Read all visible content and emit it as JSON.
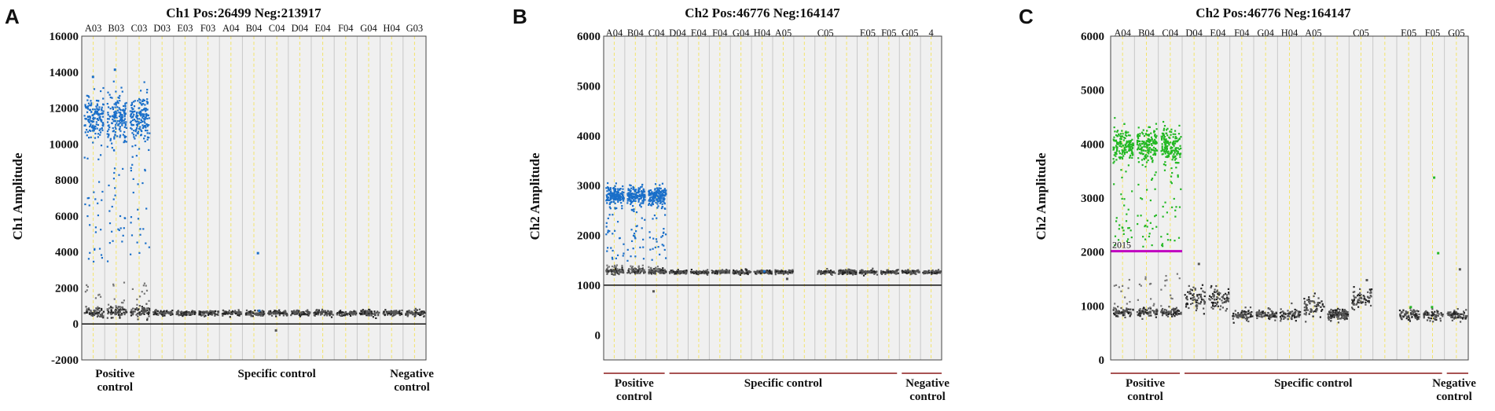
{
  "chart_data": [
    {
      "panel": "A",
      "type": "scatter",
      "title": "Ch1 Pos:26499 Neg:213917",
      "ylabel": "Ch1 Amplitude",
      "xlabel": "",
      "ylim": [
        -2000,
        16000
      ],
      "yticks": [
        -2000,
        0,
        2000,
        4000,
        6000,
        8000,
        10000,
        12000,
        14000,
        16000
      ],
      "wells": [
        "A03",
        "B03",
        "C03",
        "D03",
        "E03",
        "F03",
        "A04",
        "B04",
        "C04",
        "D04",
        "E04",
        "F04",
        "G04",
        "H04",
        "G03"
      ],
      "groups": [
        {
          "label": [
            "Positive",
            "control"
          ],
          "wells": [
            "A03",
            "B03",
            "C03"
          ]
        },
        {
          "label": [
            "Specific control"
          ],
          "wells": [
            "D03",
            "E03",
            "F03",
            "A04",
            "B04",
            "C04",
            "D04",
            "E04",
            "F04",
            "G04",
            "H04"
          ]
        },
        {
          "label": [
            "Negative",
            "control"
          ],
          "wells": [
            "G03"
          ]
        }
      ],
      "threshold": 0,
      "threshold_label": "",
      "positive_color": "#1a6fc9",
      "negative_color": "#555555",
      "clusters": [
        {
          "wells": [
            "A03",
            "B03",
            "C03"
          ],
          "positive_center": 11500,
          "positive_spread": 1400,
          "negative_center": 700,
          "negative_spread": 300,
          "rain_low": 3500,
          "rain_high": 10000
        },
        {
          "wells": [
            "D03",
            "E03",
            "F03",
            "A04",
            "B04",
            "C04",
            "D04",
            "E04",
            "F04",
            "G04",
            "H04",
            "G03"
          ],
          "negative_center": 650,
          "negative_spread": 150
        }
      ],
      "outliers": [
        {
          "well": "B04",
          "y": 4000,
          "positive": true
        },
        {
          "well": "B04",
          "y": 800,
          "positive": true
        },
        {
          "well": "C04",
          "y": -300,
          "positive": false
        },
        {
          "well": "B03",
          "y": 14200,
          "positive": true
        },
        {
          "well": "A03",
          "y": 13800,
          "positive": true
        }
      ]
    },
    {
      "panel": "B",
      "type": "scatter",
      "title": "Ch2 Pos:46776 Neg:164147",
      "ylabel": "Ch2 Amplitude",
      "xlabel": "",
      "ylim": [
        -500,
        6000
      ],
      "yticks": [
        0,
        1000,
        2000,
        3000,
        4000,
        5000,
        6000
      ],
      "wells": [
        "A04",
        "B04",
        "C04",
        "D04",
        "E04",
        "F04",
        "G04",
        "H04",
        "A05",
        "",
        "C05",
        "",
        "E05",
        "F05",
        "G05",
        "4"
      ],
      "groups": [
        {
          "label": [
            "Positive",
            "control"
          ],
          "wells": [
            "A04",
            "B04",
            "C04"
          ]
        },
        {
          "label": [
            "Specific control"
          ],
          "wells": [
            "D04",
            "E04",
            "F04",
            "G04",
            "H04",
            "A05",
            "C05",
            "E05",
            "F05"
          ]
        },
        {
          "label": [
            "Negative",
            "control"
          ],
          "wells": [
            "G05"
          ]
        }
      ],
      "threshold": 1000,
      "threshold_label": "",
      "positive_color": "#1a6fc9",
      "negative_color": "#555555",
      "clusters": [
        {
          "wells": [
            "A04",
            "B04",
            "C04"
          ],
          "positive_center": 2800,
          "positive_spread": 200,
          "negative_center": 1300,
          "negative_spread": 60,
          "rain_low": 1500,
          "rain_high": 2600
        },
        {
          "wells": [
            "D04",
            "E04",
            "F04",
            "G04",
            "H04",
            "A05",
            "",
            "C05",
            "",
            "E05",
            "F05",
            "G05",
            "4"
          ],
          "negative_center": 1280,
          "negative_spread": 40
        }
      ],
      "outliers": [
        {
          "well": "C04",
          "y": 900,
          "positive": false
        },
        {
          "well": "H04",
          "y": 1300,
          "positive": true
        },
        {
          "well": "A05",
          "y": 1150,
          "positive": false
        }
      ]
    },
    {
      "panel": "C",
      "type": "scatter",
      "title": "Ch2 Pos:46776 Neg:164147",
      "ylabel": "Ch2 Amplitude",
      "xlabel": "",
      "ylim": [
        0,
        6000
      ],
      "yticks": [
        0,
        1000,
        2000,
        3000,
        4000,
        5000,
        6000
      ],
      "wells": [
        "A04",
        "B04",
        "C04",
        "D04",
        "E04",
        "F04",
        "G04",
        "H04",
        "A05",
        "",
        "C05",
        "",
        "E05",
        "F05",
        "G05"
      ],
      "groups": [
        {
          "label": [
            "Positive",
            "control"
          ],
          "wells": [
            "A04",
            "B04",
            "C04"
          ]
        },
        {
          "label": [
            "Specific control"
          ],
          "wells": [
            "D04",
            "E04",
            "F04",
            "G04",
            "H04",
            "A05",
            "C05",
            "E05",
            "F05"
          ]
        },
        {
          "label": [
            "Negative",
            "control"
          ],
          "wells": [
            "G05"
          ]
        }
      ],
      "threshold": 2015,
      "threshold_label": "2015",
      "positive_color": "#23b823",
      "negative_color": "#555555",
      "clusters": [
        {
          "wells": [
            "A04",
            "B04",
            "C04"
          ],
          "positive_center": 4000,
          "positive_spread": 350,
          "negative_center": 900,
          "negative_spread": 80,
          "rain_low": 2100,
          "rain_high": 3600
        },
        {
          "wells": [
            "D04",
            "E04"
          ],
          "negative_center": 1150,
          "negative_spread": 200
        },
        {
          "wells": [
            "F04",
            "G04",
            "H04"
          ],
          "negative_center": 850,
          "negative_spread": 100
        },
        {
          "wells": [
            "A05"
          ],
          "negative_center": 1000,
          "negative_spread": 200
        },
        {
          "wells": [
            ""
          ],
          "negative_center": 850,
          "negative_spread": 100
        },
        {
          "wells": [
            "C05"
          ],
          "negative_center": 1150,
          "negative_spread": 180
        },
        {
          "wells": [
            "",
            "E05",
            "F05",
            "G05"
          ],
          "negative_center": 850,
          "negative_spread": 100
        }
      ],
      "outliers": [
        {
          "well": "F05",
          "y": 3400,
          "positive": true
        },
        {
          "well": "F05",
          "y": 2000,
          "positive": true
        },
        {
          "well": "F05",
          "y": 1000,
          "positive": true
        },
        {
          "well": "E05",
          "y": 1000,
          "positive": true
        },
        {
          "well": "D04",
          "y": 1800,
          "positive": false
        },
        {
          "well": "G05",
          "y": 1700,
          "positive": false
        },
        {
          "well": "C05",
          "y": 1500,
          "positive": false
        }
      ]
    }
  ]
}
